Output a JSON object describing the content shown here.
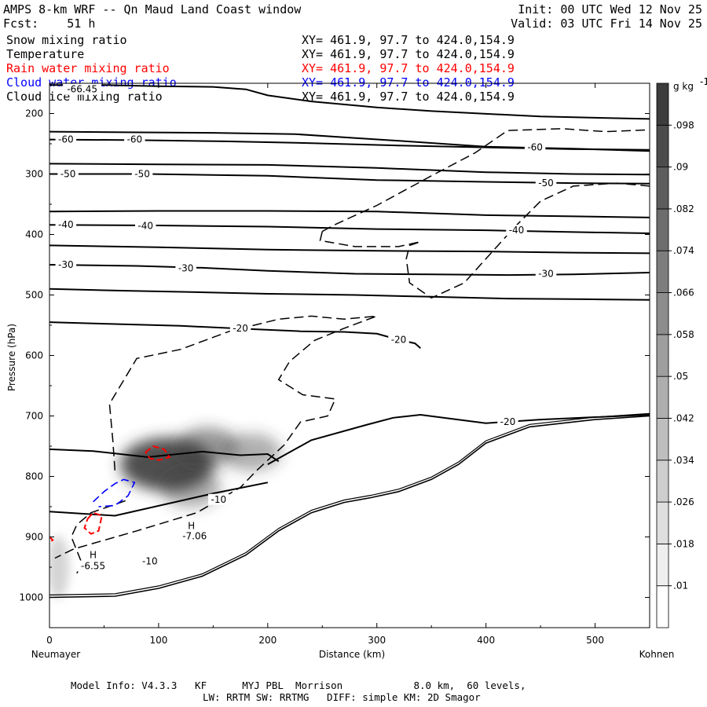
{
  "header": {
    "title": "AMPS 8-km WRF -- Qn Maud Land Coast window",
    "fcst": "Fcst:    51 h",
    "init": "Init: 00 UTC Wed 12 Nov 25",
    "valid": "Valid: 03 UTC Fri 14 Nov 25"
  },
  "fields": [
    {
      "label": "Snow mixing ratio",
      "xy": "XY= 461.9, 97.7 to 424.0,154.9",
      "color": "#000000"
    },
    {
      "label": "Temperature",
      "xy": "XY= 461.9, 97.7 to 424.0,154.9",
      "color": "#000000"
    },
    {
      "label": "Rain water mixing ratio",
      "xy": "XY= 461.9, 97.7 to 424.0,154.9",
      "color": "#ff0000"
    },
    {
      "label": "Cloud water mixing ratio",
      "xy": "XY= 461.9, 97.7 to 424.0,154.9",
      "color": "#0000ff"
    },
    {
      "label": "Cloud ice mixing ratio",
      "xy": "XY= 461.9, 97.7 to 424.0,154.9",
      "color": "#000000"
    }
  ],
  "footer": {
    "line1": "Model Info: V4.3.3   KF      MYJ PBL  Morrison            8.0 km,  60 levels,",
    "line2": "LW: RRTM SW: RRTMG   DIFF: simple KM: 2D Smagor"
  },
  "chart_data": {
    "type": "contour",
    "title": "AMPS 8-km WRF -- Qn Maud Land Coast window",
    "xlabel": "Distance (km)",
    "ylabel": "Pressure (hPa)",
    "xlim": [
      0,
      550
    ],
    "ylim": [
      150,
      1050
    ],
    "x_ticks": [
      0,
      100,
      200,
      300,
      400,
      500
    ],
    "y_ticks": [
      200,
      300,
      400,
      500,
      600,
      700,
      800,
      900,
      1000
    ],
    "x_endpoints": {
      "left": "Neumayer",
      "right": "Kohnen"
    },
    "colorbar": {
      "unit": "g kg",
      "unit_exp": "-1",
      "levels": [
        ".01",
        ".018",
        ".026",
        ".034",
        ".042",
        ".05",
        ".058",
        ".066",
        ".074",
        ".082",
        ".09",
        ".098"
      ]
    },
    "temperature_isotherms": [
      {
        "value": -66.45,
        "points": [
          [
            0,
            153
          ],
          [
            50,
            153
          ],
          [
            100,
            155
          ],
          [
            150,
            156
          ],
          [
            180,
            160
          ],
          [
            200,
            170
          ],
          [
            240,
            180
          ],
          [
            300,
            190
          ],
          [
            350,
            196
          ],
          [
            450,
            205
          ],
          [
            550,
            209
          ]
        ]
      },
      {
        "points": [
          [
            0,
            230
          ],
          [
            70,
            231
          ],
          [
            150,
            232
          ],
          [
            225,
            234
          ],
          [
            275,
            240
          ],
          [
            320,
            245
          ],
          [
            400,
            255
          ],
          [
            480,
            258
          ],
          [
            550,
            262
          ]
        ]
      },
      {
        "value": -60,
        "points": [
          [
            0,
            243
          ],
          [
            80,
            244
          ],
          [
            160,
            246
          ],
          [
            240,
            249
          ],
          [
            320,
            253
          ],
          [
            400,
            256
          ],
          [
            480,
            259
          ],
          [
            550,
            260
          ]
        ]
      },
      {
        "points": [
          [
            0,
            283
          ],
          [
            100,
            284
          ],
          [
            200,
            285
          ],
          [
            300,
            290
          ],
          [
            400,
            297
          ],
          [
            480,
            300
          ],
          [
            550,
            301
          ]
        ]
      },
      {
        "value": -50,
        "points": [
          [
            0,
            300
          ],
          [
            90,
            300
          ],
          [
            200,
            303
          ],
          [
            300,
            310
          ],
          [
            400,
            313
          ],
          [
            480,
            315
          ],
          [
            550,
            316
          ]
        ]
      },
      {
        "points": [
          [
            0,
            362
          ],
          [
            100,
            361
          ],
          [
            200,
            361
          ],
          [
            300,
            362
          ],
          [
            400,
            368
          ],
          [
            480,
            370
          ],
          [
            550,
            372
          ]
        ]
      },
      {
        "value": -40,
        "points": [
          [
            0,
            384
          ],
          [
            100,
            385
          ],
          [
            200,
            387
          ],
          [
            300,
            391
          ],
          [
            400,
            393
          ],
          [
            480,
            396
          ],
          [
            550,
            398
          ]
        ]
      },
      {
        "points": [
          [
            0,
            418
          ],
          [
            100,
            421
          ],
          [
            200,
            425
          ],
          [
            300,
            427
          ],
          [
            400,
            428
          ],
          [
            480,
            430
          ],
          [
            550,
            431
          ]
        ]
      },
      {
        "value": -30,
        "points": [
          [
            0,
            450
          ],
          [
            80,
            452
          ],
          [
            140,
            455
          ],
          [
            200,
            460
          ],
          [
            280,
            465
          ],
          [
            350,
            466
          ],
          [
            420,
            467
          ],
          [
            480,
            466
          ],
          [
            550,
            463
          ]
        ]
      },
      {
        "points": [
          [
            0,
            490
          ],
          [
            70,
            493
          ],
          [
            130,
            495
          ],
          [
            200,
            498
          ],
          [
            280,
            500
          ],
          [
            350,
            503
          ],
          [
            420,
            506
          ],
          [
            490,
            507
          ],
          [
            550,
            508
          ]
        ]
      },
      {
        "value": -20,
        "points": [
          [
            0,
            545
          ],
          [
            60,
            548
          ],
          [
            120,
            551
          ],
          [
            180,
            556
          ],
          [
            230,
            560
          ],
          [
            270,
            561
          ],
          [
            300,
            564
          ],
          [
            320,
            574
          ],
          [
            335,
            580
          ],
          [
            340,
            588
          ]
        ]
      },
      {
        "points": [
          [
            0,
            755
          ],
          [
            40,
            758
          ],
          [
            90,
            768
          ],
          [
            140,
            759
          ],
          [
            175,
            765
          ],
          [
            200,
            763
          ],
          [
            210,
            775
          ]
        ]
      },
      {
        "value": -20,
        "points": [
          [
            200,
            780
          ],
          [
            240,
            740
          ],
          [
            290,
            715
          ],
          [
            315,
            703
          ],
          [
            340,
            698
          ],
          [
            400,
            712
          ],
          [
            450,
            706
          ],
          [
            550,
            698
          ]
        ]
      },
      {
        "value": -10,
        "points": [
          [
            0,
            858
          ],
          [
            60,
            865
          ],
          [
            150,
            828
          ],
          [
            200,
            810
          ]
        ]
      }
    ],
    "labels": [
      {
        "text": "-66.45",
        "x": 30,
        "p": 160
      },
      {
        "text": "-60",
        "x": 15,
        "p": 243
      },
      {
        "text": "-60",
        "x": 78,
        "p": 243
      },
      {
        "text": "-60",
        "x": 445,
        "p": 256
      },
      {
        "text": "-50",
        "x": 17,
        "p": 300
      },
      {
        "text": "-50",
        "x": 85,
        "p": 300
      },
      {
        "text": "-50",
        "x": 455,
        "p": 315
      },
      {
        "text": "-40",
        "x": 15,
        "p": 384
      },
      {
        "text": "-40",
        "x": 88,
        "p": 386
      },
      {
        "text": "-40",
        "x": 428,
        "p": 393
      },
      {
        "text": "-30",
        "x": 15,
        "p": 450
      },
      {
        "text": "-30",
        "x": 125,
        "p": 456
      },
      {
        "text": "-30",
        "x": 455,
        "p": 465
      },
      {
        "text": "-20",
        "x": 175,
        "p": 555
      },
      {
        "text": "-20",
        "x": 320,
        "p": 574
      },
      {
        "text": "-20",
        "x": 420,
        "p": 710
      },
      {
        "text": "-10",
        "x": 155,
        "p": 838
      },
      {
        "text": "-10",
        "x": 92,
        "p": 940
      },
      {
        "text": "H",
        "x": 40,
        "p": 930
      },
      {
        "text": "-6.55",
        "x": 40,
        "p": 948
      },
      {
        "text": "H",
        "x": 130,
        "p": 882
      },
      {
        "text": "-7.06",
        "x": 133,
        "p": 899
      }
    ],
    "snow_maxima": [
      {
        "x": 108,
        "p": 780,
        "value": 0.09
      },
      {
        "x": 145,
        "p": 750,
        "value": 0.05
      },
      {
        "x": 185,
        "p": 760,
        "value": 0.04
      },
      {
        "x": 130,
        "p": 820,
        "value": 0.04
      }
    ]
  }
}
